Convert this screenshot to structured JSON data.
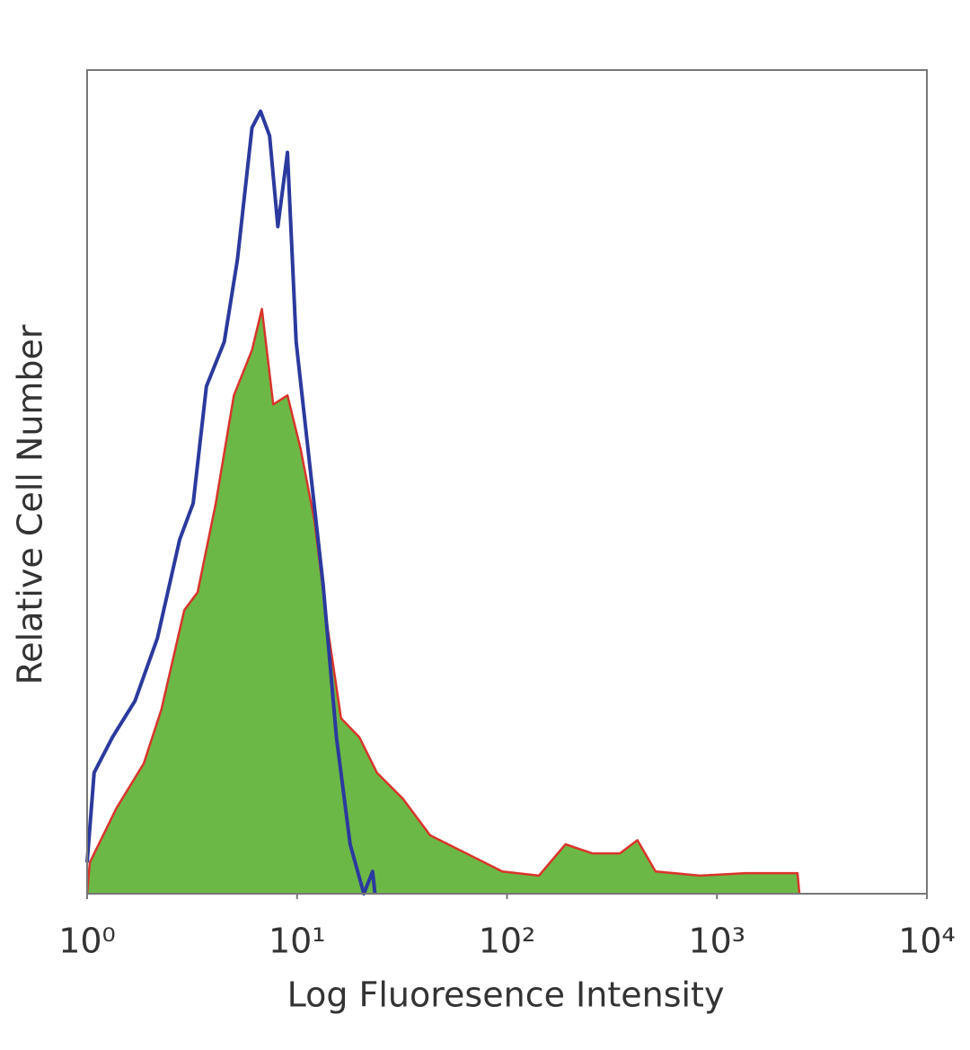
{
  "chart_data": {
    "type": "line",
    "xlabel": "Log Fluoresence Intensity",
    "ylabel": "Relative Cell Number",
    "xscale": "log",
    "xlim": [
      1,
      10000
    ],
    "xticks": [
      {
        "value": 1,
        "label": "10⁰"
      },
      {
        "value": 10,
        "label": "10¹"
      },
      {
        "value": 100,
        "label": "10²"
      },
      {
        "value": 1000,
        "label": "10³"
      },
      {
        "value": 10000,
        "label": "10⁴"
      }
    ],
    "ylim": [
      0,
      100
    ],
    "series": [
      {
        "color": "#d9342b",
        "fill": "#6cb846",
        "x": [
          1,
          1.03,
          1.38,
          1.86,
          2.26,
          2.9,
          3.36,
          4.1,
          5.0,
          6.1,
          6.8,
          7.7,
          9.0,
          10.4,
          12.1,
          14.0,
          16.2,
          19.8,
          24,
          32,
          43,
          64,
          95,
          142,
          190,
          255,
          345,
          418,
          510,
          830,
          1370,
          2420,
          2470
        ],
        "values": [
          0,
          3.8,
          10.4,
          15.8,
          22.4,
          34.4,
          36.6,
          47.4,
          60.5,
          66,
          71,
          59.4,
          60.5,
          54,
          45.3,
          32.2,
          21.3,
          19,
          14.7,
          11.5,
          7.1,
          4.9,
          2.7,
          2.2,
          6,
          4.9,
          4.9,
          6.5,
          2.7,
          2.2,
          2.5,
          2.5,
          0
        ]
      },
      {
        "color": "#2b3a9e",
        "x": [
          1,
          1.08,
          1.32,
          1.69,
          2.16,
          2.76,
          3.2,
          3.7,
          4.5,
          5.2,
          6.1,
          6.7,
          7.4,
          8.1,
          9.0,
          9.9,
          11.5,
          13.3,
          15.4,
          17.9,
          20.8,
          22.9,
          23.5
        ],
        "values": [
          3.8,
          14.7,
          19,
          23.4,
          31,
          43,
          47.4,
          61.6,
          67,
          77,
          93,
          95,
          92,
          81,
          90,
          67,
          52,
          37.6,
          19,
          6,
          0,
          2.7,
          0
        ]
      }
    ]
  }
}
